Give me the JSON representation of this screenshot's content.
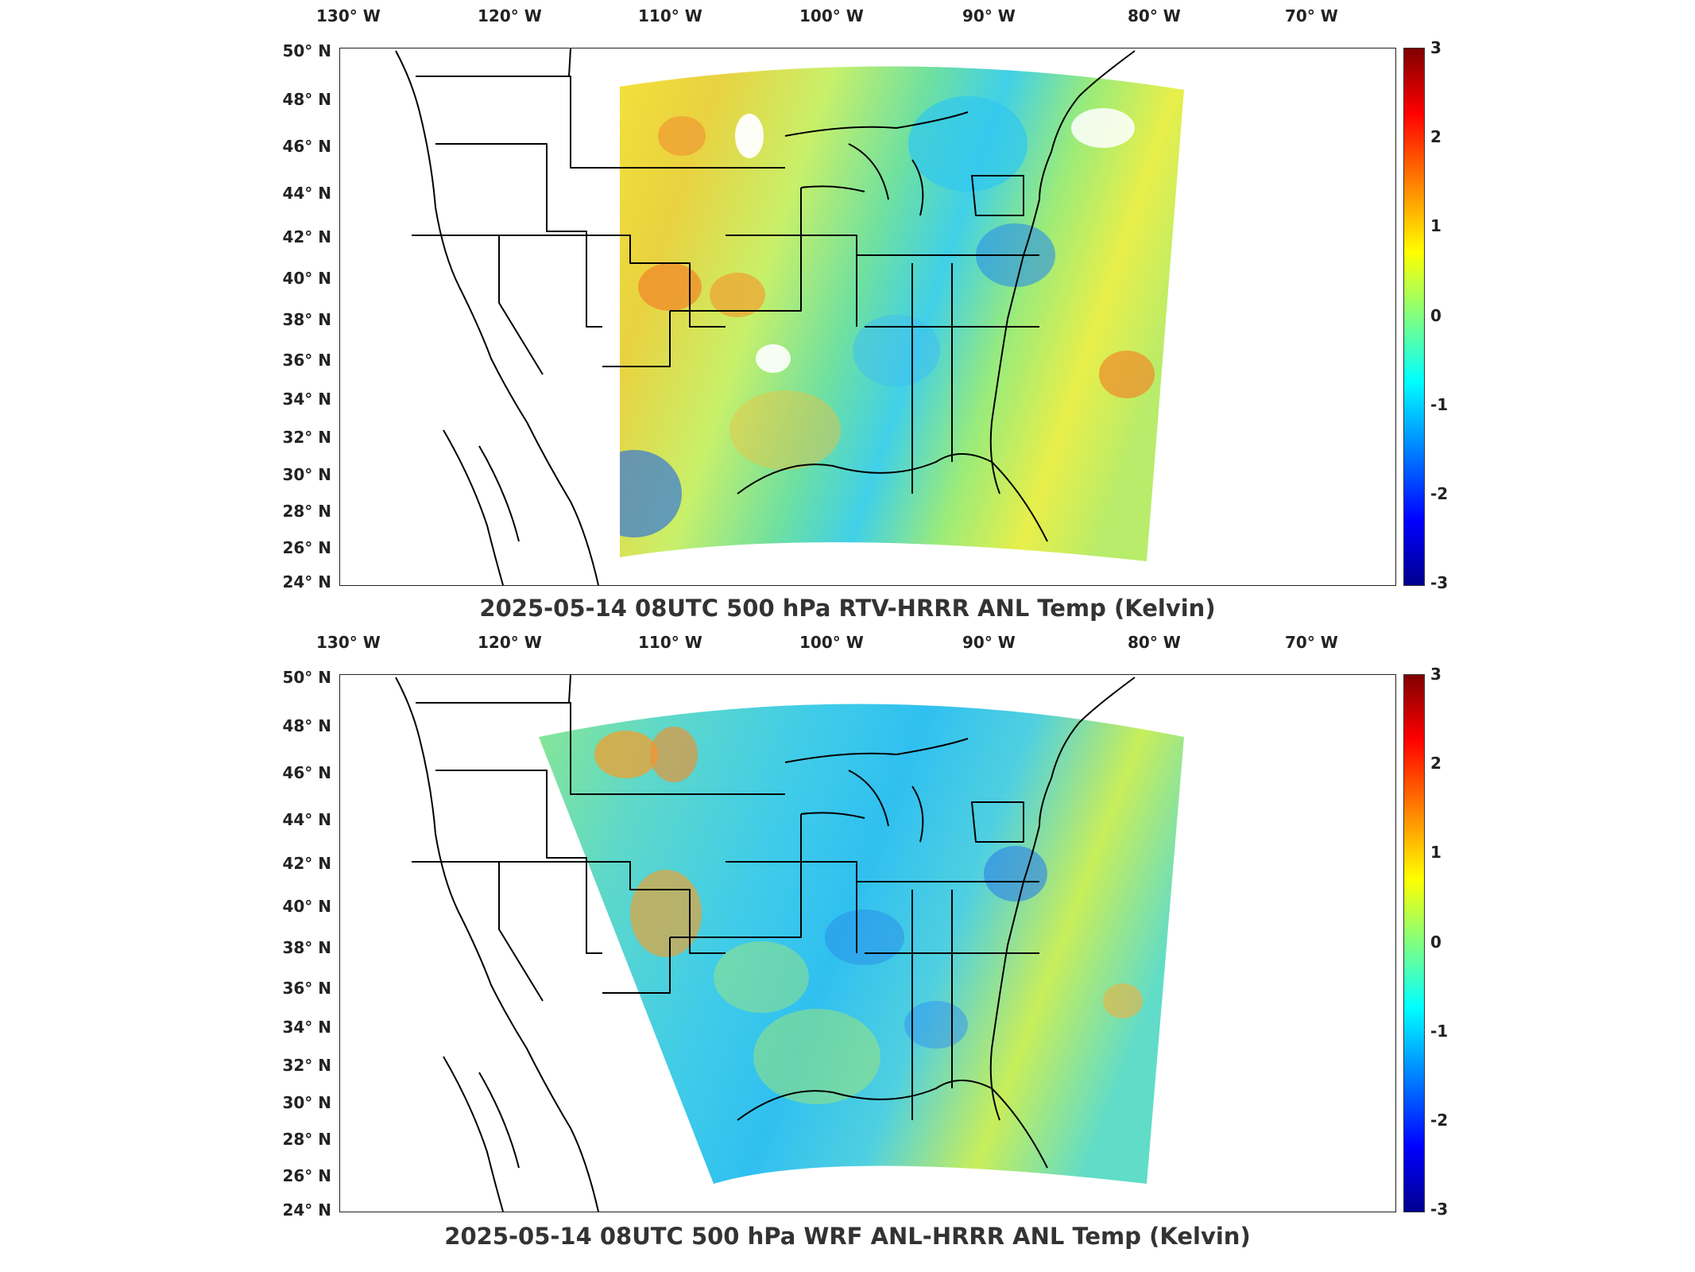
{
  "lon_ticks": [
    "130° W",
    "120° W",
    "110° W",
    "100° W",
    "90° W",
    "80° W",
    "70° W"
  ],
  "lat_ticks": [
    "50° N",
    "48° N",
    "46° N",
    "44° N",
    "42° N",
    "40° N",
    "38° N",
    "36° N",
    "34° N",
    "32° N",
    "30° N",
    "28° N",
    "26° N",
    "24° N"
  ],
  "colorbar": {
    "ticks": [
      "3",
      "2",
      "1",
      "0",
      "-1",
      "-2",
      "-3"
    ],
    "colormap": "jet",
    "range": [
      -3,
      3
    ]
  },
  "panels": [
    {
      "title": "2025-05-14 08UTC 500 hPa RTV-HRRR ANL Temp (Kelvin)"
    },
    {
      "title": "2025-05-14 08UTC 500 hPa WRF ANL-HRRR ANL Temp (Kelvin)"
    }
  ]
}
